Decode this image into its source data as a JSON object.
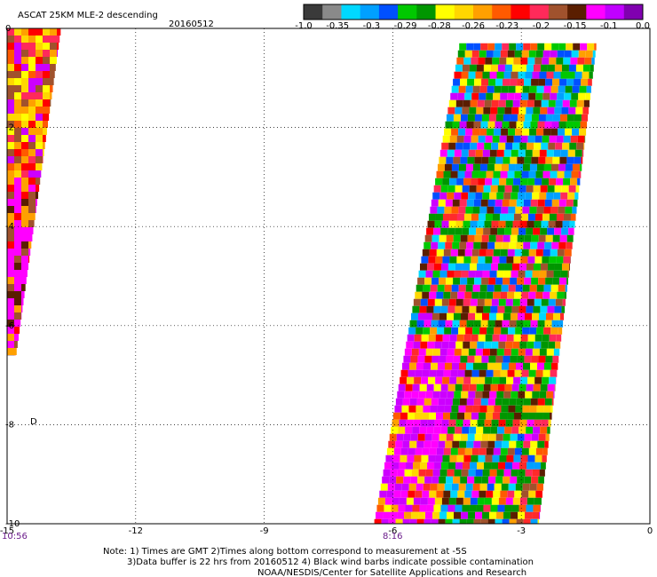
{
  "chart_data": {
    "type": "heatmap",
    "title": "ASCAT 25KM MLE-2 descending",
    "date": "20160512",
    "xlim": [
      -15,
      0
    ],
    "ylim": [
      -10,
      0
    ],
    "x_ticks": [
      "-15",
      "-12",
      "-9",
      "-6",
      "-3",
      "0"
    ],
    "y_ticks": [
      "0",
      "-2",
      "-4",
      "-6",
      "-8",
      "-10"
    ],
    "grid": true,
    "colorbar": {
      "position": "top-right",
      "labels": [
        "-1.0",
        "-0.35",
        "-0.3",
        "-0.29",
        "-0.28",
        "-0.26",
        "-0.23",
        "-0.2",
        "-0.15",
        "-0.1",
        "0.0"
      ],
      "colors": [
        "#3a3a3a",
        "#8a8a8a",
        "#00d8ff",
        "#00a0ff",
        "#0050ff",
        "#00c800",
        "#009600",
        "#ffff00",
        "#ffd700",
        "#ffa000",
        "#ff5a00",
        "#ff0000",
        "#ff2a5a",
        "#a0522d",
        "#5a1e00",
        "#ff00ff",
        "#c000ff",
        "#8000b0"
      ]
    },
    "swaths": [
      {
        "name": "west",
        "pass_time": "10:56",
        "lon_left_top": -15.0,
        "lon_right_top": -13.75,
        "lon_left_bottom": -15.0,
        "lon_right_bottom": -14.8,
        "lat_top": 0.0,
        "lat_bottom": -6.6
      },
      {
        "name": "east",
        "pass_time": "8:16",
        "lon_left_top": -4.45,
        "lon_right_top": -1.25,
        "lon_left_bottom": -6.45,
        "lon_right_bottom": -2.6,
        "lat_top": -0.3,
        "lat_bottom": -10.0
      }
    ],
    "annotations": [
      "D"
    ]
  },
  "notes": {
    "line1": "Note: 1) Times are GMT 2)Times along bottom correspond to measurement at -5S",
    "line2": "3)Data buffer is 22 hrs from 20160512 4) Black wind barbs indicate possible contamination",
    "line3": "NOAA/NESDIS/Center for Satellite Applications and Research"
  }
}
